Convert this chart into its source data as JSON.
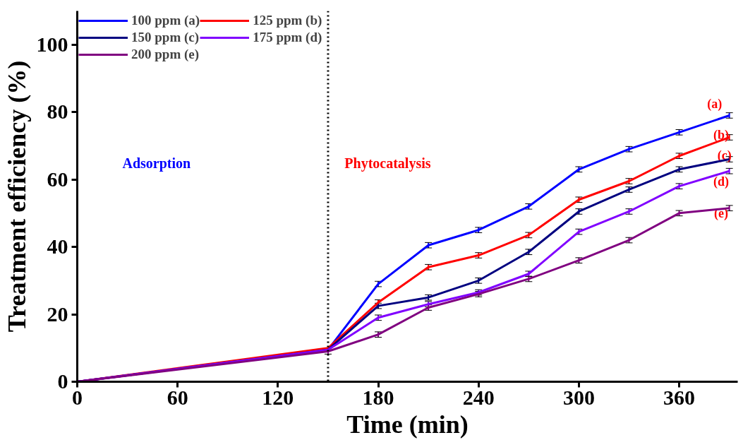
{
  "chart_data": {
    "type": "line",
    "xlabel": "Time (min)",
    "ylabel": "Treatment efficiency (%)",
    "x": [
      0,
      150,
      180,
      210,
      240,
      270,
      300,
      330,
      360,
      390
    ],
    "xlim": [
      0,
      395
    ],
    "xticks": [
      0,
      60,
      120,
      180,
      240,
      300,
      360
    ],
    "ylim": [
      0,
      110
    ],
    "yticks": [
      0,
      20,
      40,
      60,
      80,
      100
    ],
    "series": [
      {
        "name": "100 ppm (a)",
        "color": "#0000ff",
        "values": [
          0,
          9.5,
          29,
          40.5,
          45,
          52,
          63,
          69,
          74,
          79
        ],
        "errors": [
          null,
          null,
          0.8,
          0.8,
          0.8,
          0.8,
          0.8,
          0.8,
          0.8,
          0.8
        ]
      },
      {
        "name": "125 ppm (b)",
        "color": "#ff0000",
        "values": [
          0,
          10,
          23.5,
          34,
          37.5,
          43.5,
          54,
          59.5,
          67,
          72.5
        ],
        "errors": [
          null,
          null,
          0.8,
          0.8,
          0.8,
          0.8,
          0.8,
          0.8,
          0.8,
          0.8
        ]
      },
      {
        "name": "150 ppm (c)",
        "color": "#000080",
        "values": [
          0,
          9.5,
          22.5,
          25,
          30,
          38.5,
          50.5,
          57,
          63,
          66
        ],
        "errors": [
          null,
          null,
          0.8,
          0.8,
          0.8,
          0.8,
          0.8,
          0.8,
          0.8,
          0.8
        ]
      },
      {
        "name": "175 ppm (d)",
        "color": "#8000ff",
        "values": [
          0,
          9.5,
          19,
          23,
          26.5,
          32,
          44.5,
          50.5,
          58,
          62.5
        ],
        "errors": [
          null,
          null,
          0.8,
          0.8,
          0.8,
          0.8,
          0.8,
          0.8,
          0.8,
          0.8
        ]
      },
      {
        "name": "200 ppm (e)",
        "color": "#800080",
        "values": [
          0,
          9,
          14,
          22,
          26,
          30.5,
          36,
          42,
          50,
          51.5
        ],
        "errors": [
          null,
          0.8,
          0.8,
          0.8,
          0.8,
          0.8,
          0.8,
          0.8,
          0.8,
          0.8
        ]
      }
    ],
    "ref_lines": [
      {
        "axis": "x",
        "value": 150,
        "label": null,
        "color": "#000000",
        "line_style": "dotted"
      }
    ],
    "annotations": [
      "Adsorption",
      "Phytocatalysis",
      "(a)",
      "(b)",
      "(c)",
      "(d)",
      "(e)"
    ],
    "legend": "top left",
    "grid": false,
    "marker": "none",
    "line_style": "solid"
  }
}
